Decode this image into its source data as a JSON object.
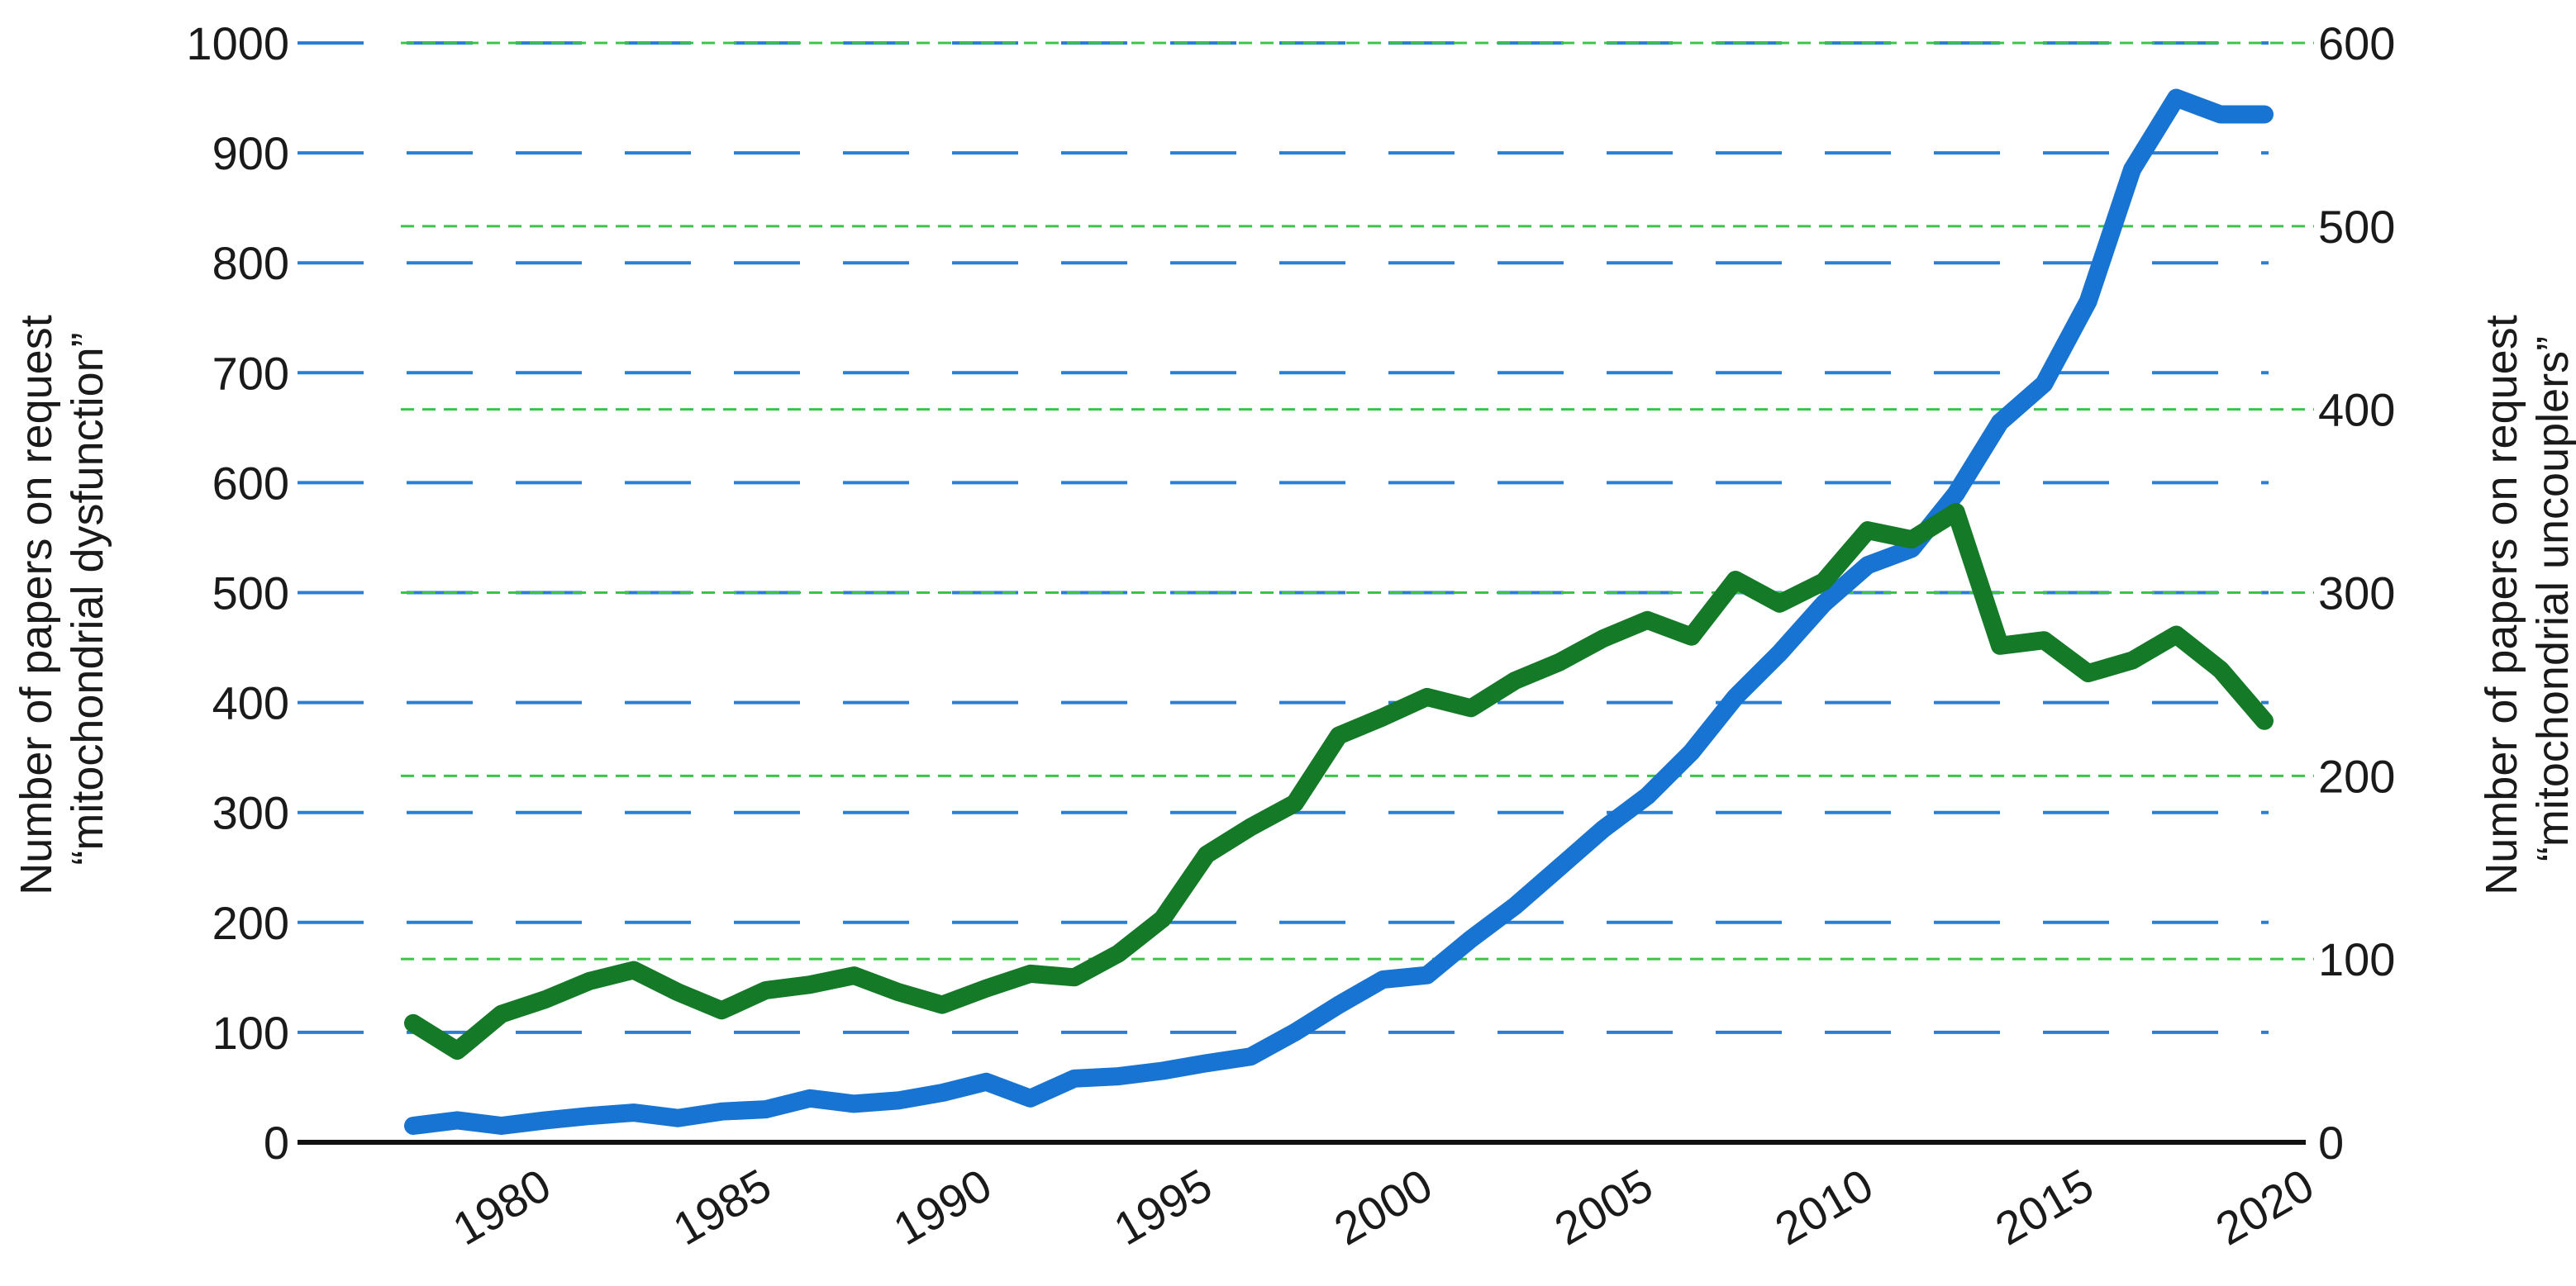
{
  "chart_data": {
    "type": "line",
    "title": "",
    "xlabel": "",
    "x_ticks": [
      "1980",
      "1985",
      "1990",
      "1995",
      "2000",
      "2005",
      "2010",
      "2015",
      "2020"
    ],
    "xlim": [
      1978,
      2020
    ],
    "left_axis": {
      "label_line1": "Number of papers on request",
      "label_line2": "“mitochondrial dysfunction”",
      "ylim": [
        0,
        1000
      ],
      "ticks": [
        "0",
        "100",
        "200",
        "300",
        "400",
        "500",
        "600",
        "700",
        "800",
        "900",
        "1000"
      ],
      "gridlines": [
        100,
        200,
        300,
        400,
        500,
        600,
        700,
        800,
        900,
        1000
      ],
      "grid_color": "#2a7fd4"
    },
    "right_axis": {
      "label_line1": "Number of papers on request",
      "label_line2": "“mitochondrial uncouplers”",
      "ylim": [
        0,
        600
      ],
      "ticks": [
        "0",
        "100",
        "200",
        "300",
        "400",
        "500",
        "600"
      ],
      "gridlines": [
        100,
        200,
        300,
        400,
        500,
        600
      ],
      "grid_color": "#3cc44a"
    },
    "series": [
      {
        "axis": "left",
        "color": "#1874d2",
        "x": [
          1978,
          1979,
          1980,
          1981,
          1982,
          1983,
          1984,
          1985,
          1986,
          1987,
          1988,
          1989,
          1990,
          1991,
          1992,
          1993,
          1994,
          1995,
          1996,
          1997,
          1998,
          1999,
          2000,
          2001,
          2002,
          2003,
          2004,
          2005,
          2006,
          2007,
          2008,
          2009,
          2010,
          2011,
          2012,
          2013,
          2014,
          2015,
          2016,
          2017,
          2018,
          2019,
          2020
        ],
        "values": [
          15,
          20,
          15,
          20,
          24,
          27,
          22,
          28,
          30,
          40,
          35,
          38,
          45,
          55,
          40,
          58,
          60,
          65,
          72,
          78,
          100,
          125,
          148,
          152,
          185,
          215,
          250,
          285,
          315,
          355,
          405,
          445,
          490,
          525,
          540,
          590,
          655,
          690,
          765,
          885,
          950,
          935,
          935
        ]
      },
      {
        "axis": "right",
        "color": "#157a27",
        "x": [
          1978,
          1979,
          1980,
          1981,
          1982,
          1983,
          1984,
          1985,
          1986,
          1987,
          1988,
          1989,
          1990,
          1991,
          1992,
          1993,
          1994,
          1995,
          1996,
          1997,
          1998,
          1999,
          2000,
          2001,
          2002,
          2003,
          2004,
          2005,
          2006,
          2007,
          2008,
          2009,
          2010,
          2011,
          2012,
          2013,
          2014,
          2015,
          2016,
          2017,
          2018,
          2019,
          2020
        ],
        "values": [
          65,
          50,
          70,
          78,
          88,
          94,
          82,
          72,
          83,
          86,
          91,
          82,
          75,
          84,
          92,
          90,
          103,
          122,
          157,
          172,
          185,
          222,
          232,
          243,
          237,
          252,
          262,
          275,
          285,
          276,
          307,
          294,
          306,
          334,
          329,
          344,
          271,
          274,
          256,
          263,
          277,
          258,
          230
        ]
      }
    ]
  }
}
